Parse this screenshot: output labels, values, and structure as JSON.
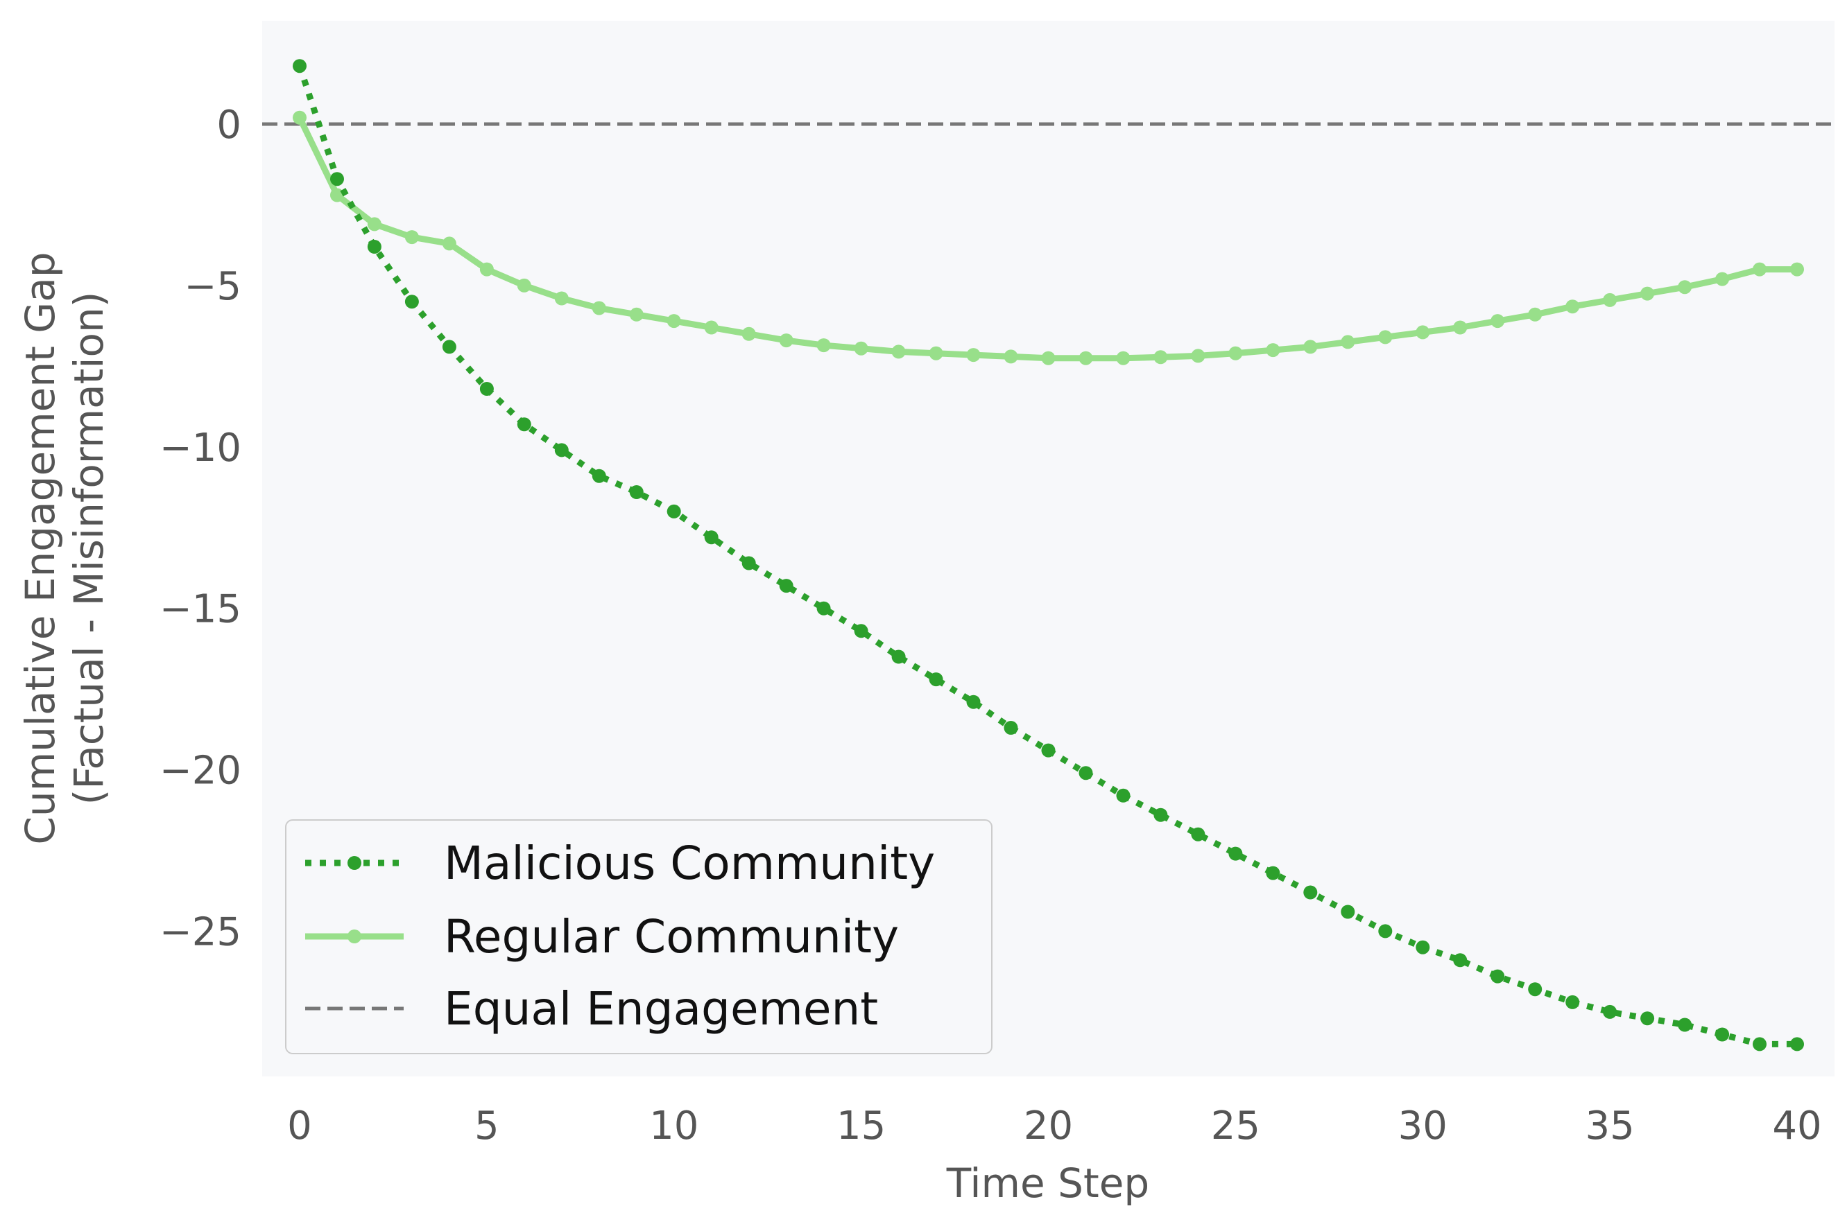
{
  "chart_data": {
    "type": "line",
    "xlabel": "Time Step",
    "ylabel_line1": "Cumulative Engagement Gap",
    "ylabel_line2": "(Factual - Misinformation)",
    "xlim": [
      -1,
      41
    ],
    "ylim": [
      -29.5,
      3.2
    ],
    "xticks": [
      0,
      5,
      10,
      15,
      20,
      25,
      30,
      35,
      40
    ],
    "xtick_labels": [
      "0",
      "5",
      "10",
      "15",
      "20",
      "25",
      "30",
      "35",
      "40"
    ],
    "yticks": [
      0,
      -5,
      -10,
      -15,
      -20,
      -25
    ],
    "ytick_labels": [
      "0",
      "−5",
      "−10",
      "−15",
      "−20",
      "−25"
    ],
    "grid": false,
    "plot_background": "#f7f8fa",
    "legend_position": "lower-left",
    "x": [
      0,
      1,
      2,
      3,
      4,
      5,
      6,
      7,
      8,
      9,
      10,
      11,
      12,
      13,
      14,
      15,
      16,
      17,
      18,
      19,
      20,
      21,
      22,
      23,
      24,
      25,
      26,
      27,
      28,
      29,
      30,
      31,
      32,
      33,
      34,
      35,
      36,
      37,
      38,
      39,
      40
    ],
    "series": [
      {
        "name": "Malicious Community",
        "style": "dotted",
        "color": "#2ca02c",
        "values": [
          1.8,
          -1.7,
          -3.8,
          -5.5,
          -6.9,
          -8.2,
          -9.3,
          -10.1,
          -10.9,
          -11.4,
          -12.0,
          -12.8,
          -13.6,
          -14.3,
          -15.0,
          -15.7,
          -16.5,
          -17.2,
          -17.9,
          -18.7,
          -19.4,
          -20.1,
          -20.8,
          -21.4,
          -22.0,
          -22.6,
          -23.2,
          -23.8,
          -24.4,
          -25.0,
          -25.5,
          -25.9,
          -26.4,
          -26.8,
          -27.2,
          -27.5,
          -27.7,
          -27.9,
          -28.2,
          -28.5,
          -28.5
        ]
      },
      {
        "name": "Regular Community",
        "style": "solid",
        "color": "#98df8a",
        "values": [
          0.2,
          -2.2,
          -3.1,
          -3.5,
          -3.7,
          -4.5,
          -5.0,
          -5.4,
          -5.7,
          -5.9,
          -6.1,
          -6.3,
          -6.5,
          -6.7,
          -6.85,
          -6.95,
          -7.05,
          -7.1,
          -7.15,
          -7.2,
          -7.25,
          -7.25,
          -7.25,
          -7.22,
          -7.18,
          -7.1,
          -7.0,
          -6.9,
          -6.75,
          -6.6,
          -6.45,
          -6.3,
          -6.1,
          -5.9,
          -5.65,
          -5.45,
          -5.25,
          -5.05,
          -4.8,
          -4.5,
          -4.5
        ]
      }
    ],
    "reference_line": {
      "name": "Equal Engagement",
      "y": 0,
      "style": "dashed",
      "color": "#777777"
    }
  },
  "legend": {
    "malicious_label": "Malicious Community",
    "regular_label": "Regular Community",
    "equal_label": "Equal Engagement"
  }
}
